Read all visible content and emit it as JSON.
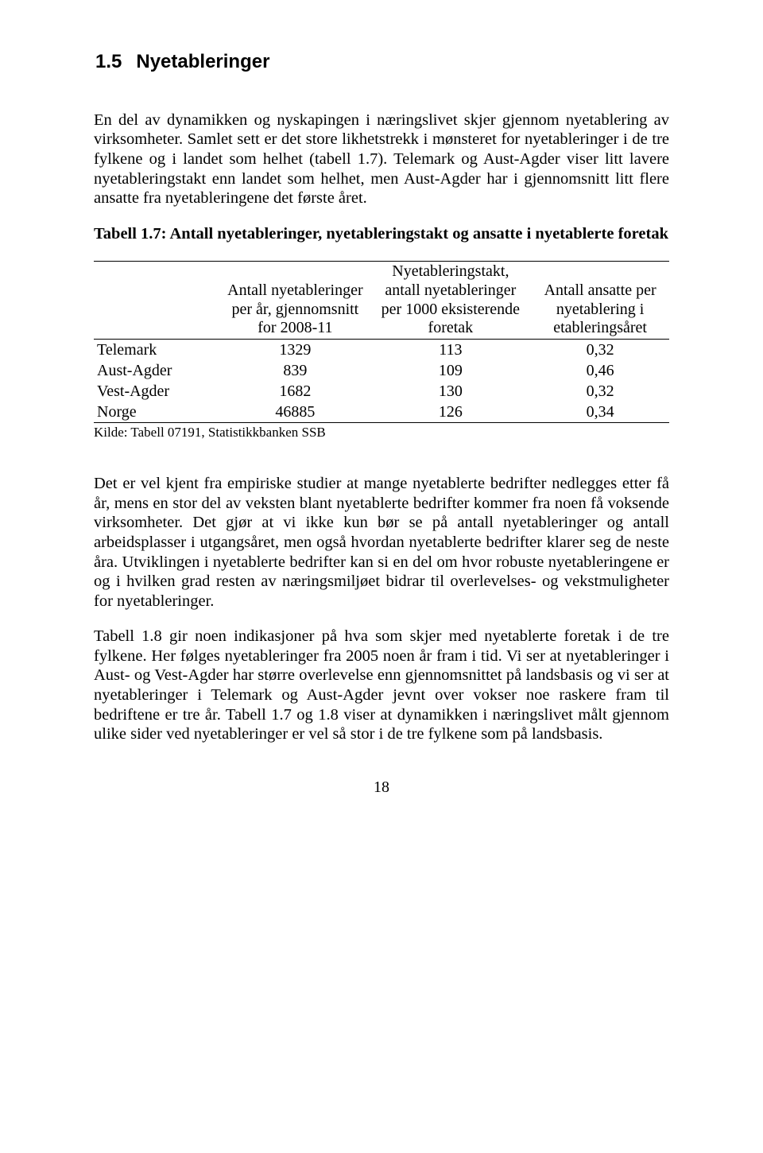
{
  "heading": {
    "number": "1.5",
    "title": "Nyetableringer"
  },
  "para1": "En del av dynamikken og nyskapingen i næringslivet skjer gjennom nyetablering av virksomheter. Samlet sett er det store likhetstrekk i mønsteret for nyetableringer i de tre fylkene og i landet som helhet (tabell 1.7). Telemark og Aust-Agder viser litt lavere nyetableringstakt enn landet som helhet, men Aust-Agder har i gjennomsnitt litt flere ansatte fra nyetableringene det første året.",
  "table_caption": "Tabell 1.7: Antall nyetableringer, nyetableringstakt og ansatte i nyetablerte foretak",
  "table": {
    "columns": [
      "",
      "Antall nyetableringer per år, gjennomsnitt for 2008-11",
      "Nyetableringstakt, antall nyetableringer per 1000 eksisterende foretak",
      "Antall ansatte per nyetablering i etableringsåret"
    ],
    "col_widths": [
      "22%",
      "26%",
      "28%",
      "24%"
    ],
    "rows": [
      {
        "label": "Telemark",
        "c1": "1329",
        "c2": "113",
        "c3": "0,32"
      },
      {
        "label": "Aust-Agder",
        "c1": "839",
        "c2": "109",
        "c3": "0,46"
      },
      {
        "label": "Vest-Agder",
        "c1": "1682",
        "c2": "130",
        "c3": "0,32"
      },
      {
        "label": "Norge",
        "c1": "46885",
        "c2": "126",
        "c3": "0,34"
      }
    ]
  },
  "source": "Kilde: Tabell 07191, Statistikkbanken SSB",
  "para2": "Det er vel kjent fra empiriske studier at mange nyetablerte bedrifter nedlegges etter få år, mens en stor del av veksten blant nyetablerte bedrifter kommer fra noen få voksende virksomheter. Det gjør at vi ikke kun bør se på antall nyetableringer og antall arbeidsplasser i utgangsåret, men også hvordan nyetablerte bedrifter klarer seg de neste åra. Utviklingen i nyetablerte bedrifter kan si en del om hvor robuste nyetableringene er og i hvilken grad resten av næringsmiljøet bidrar til overlevelses- og vekstmuligheter for nyetableringer.",
  "para3": "Tabell 1.8 gir noen indikasjoner på hva som skjer med nyetablerte foretak i de tre fylkene. Her følges nyetableringer fra 2005 noen år fram i tid. Vi ser at nyetableringer i Aust- og Vest-Agder har større overlevelse enn gjennomsnittet på landsbasis og vi ser at nyetableringer i Telemark og Aust-Agder jevnt over vokser noe raskere fram til bedriftene er tre år. Tabell 1.7 og 1.8 viser at dynamikken i næringslivet målt gjennom ulike sider ved nyetableringer er vel så stor i de tre fylkene som på landsbasis.",
  "page_number": "18",
  "colors": {
    "text": "#000000",
    "background": "#ffffff",
    "border": "#000000"
  }
}
